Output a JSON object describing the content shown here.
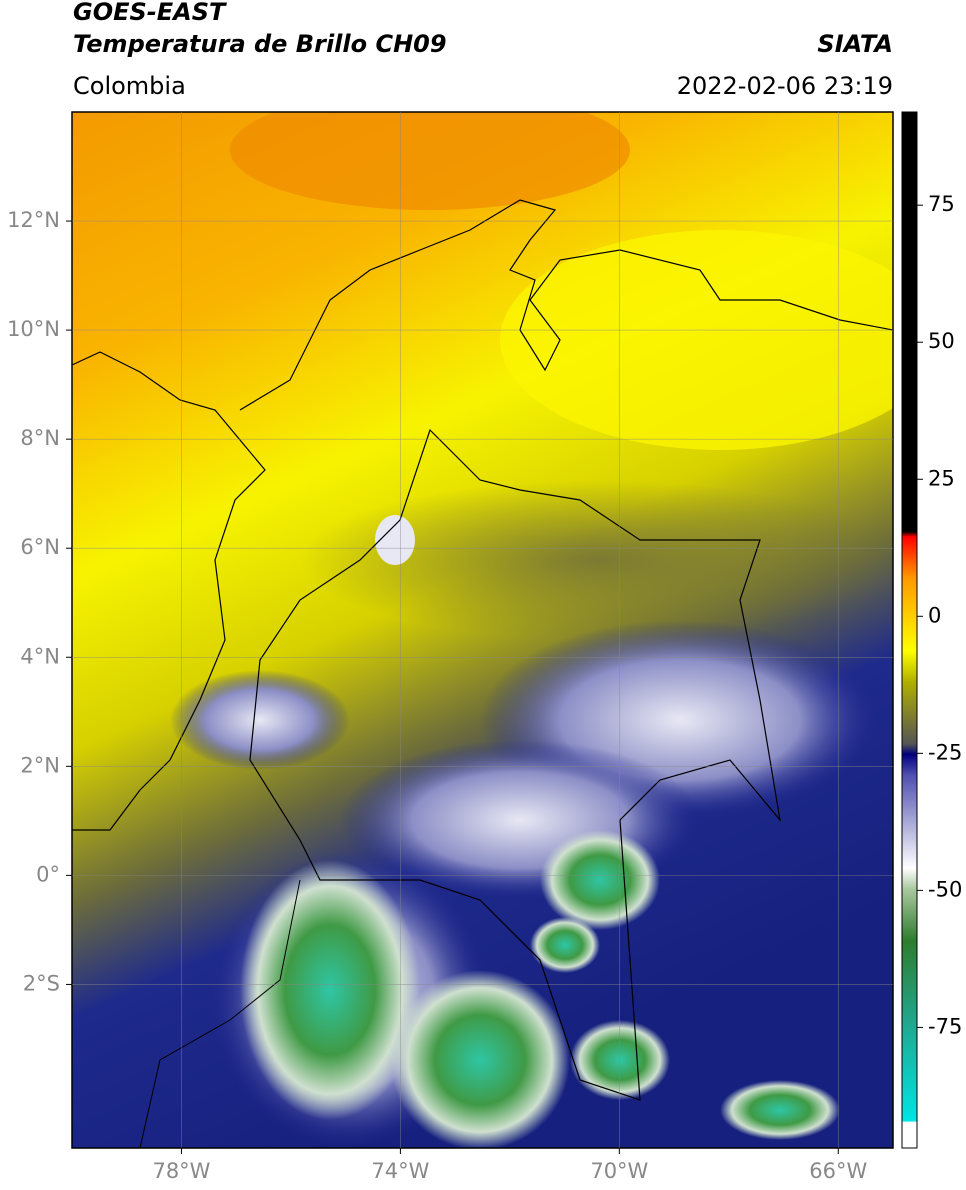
{
  "header": {
    "title_line1": "GOES-EAST",
    "title_line2": "Temperatura de Brillo CH09",
    "region": "Colombia",
    "source": "SIATA",
    "datetime": "2022-02-06 23:19"
  },
  "map": {
    "xlim": [
      -80,
      -65
    ],
    "ylim": [
      -5,
      14
    ],
    "xticks": [
      {
        "value": -78,
        "label": "78°W"
      },
      {
        "value": -74,
        "label": "74°W"
      },
      {
        "value": -70,
        "label": "70°W"
      },
      {
        "value": -66,
        "label": "66°W"
      }
    ],
    "yticks": [
      {
        "value": 12,
        "label": "12°N"
      },
      {
        "value": 10,
        "label": "10°N"
      },
      {
        "value": 8,
        "label": "8°N"
      },
      {
        "value": 6,
        "label": "6°N"
      },
      {
        "value": 4,
        "label": "4°N"
      },
      {
        "value": 2,
        "label": "2°N"
      },
      {
        "value": 0,
        "label": "0°"
      },
      {
        "value": -2,
        "label": "2°S"
      }
    ],
    "grid": true
  },
  "colorbar": {
    "lim": [
      -97,
      92
    ],
    "ticks": [
      75,
      50,
      25,
      0,
      -25,
      -50,
      -75
    ]
  }
}
